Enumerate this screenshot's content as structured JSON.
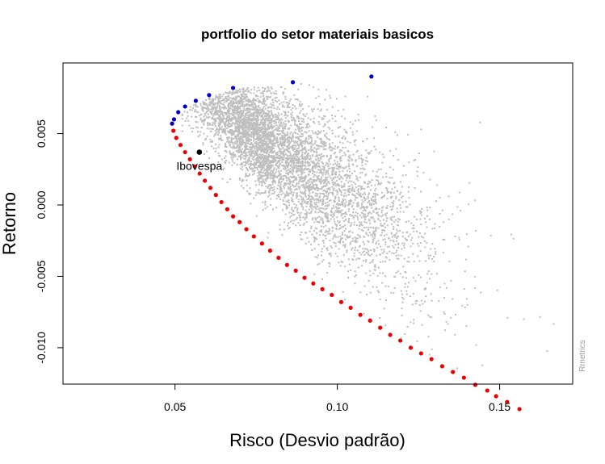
{
  "chart_data": {
    "type": "scatter",
    "title": "portfolio do setor materiais basicos",
    "xlabel": "Risco (Desvio padrão)",
    "ylabel": "Retorno",
    "xlim": [
      0.0155,
      0.1725
    ],
    "ylim": [
      -0.01255,
      0.00995
    ],
    "x_ticks": [
      0.05,
      0.1,
      0.15
    ],
    "x_tick_labels": [
      "0.05",
      "0.10",
      "0.15"
    ],
    "y_ticks": [
      -0.01,
      -0.005,
      0.0,
      0.005
    ],
    "y_tick_labels": [
      "-0.010",
      "-0.005",
      "0.000",
      "0.005"
    ],
    "grid": false,
    "legend": "none",
    "colors": {
      "random_portfolios": "#bebebe",
      "efficient_frontier": "#0000cd",
      "inefficient_frontier": "#ee0000",
      "benchmark": "#000000"
    },
    "series": [
      {
        "role": "efficient_frontier",
        "x": [
          0.0491,
          0.0497,
          0.051,
          0.0531,
          0.0564,
          0.0605,
          0.0679,
          0.0863,
          0.1105
        ],
        "y": [
          0.0057,
          0.006,
          0.0065,
          0.0069,
          0.0073,
          0.0077,
          0.0082,
          0.0086,
          0.009
        ]
      },
      {
        "role": "inefficient_frontier",
        "x": [
          0.0491,
          0.0495,
          0.0504,
          0.0517,
          0.0531,
          0.0546,
          0.0561,
          0.0576,
          0.0592,
          0.0609,
          0.0626,
          0.0643,
          0.0661,
          0.0679,
          0.0699,
          0.072,
          0.0743,
          0.0768,
          0.0793,
          0.0819,
          0.0845,
          0.0872,
          0.0899,
          0.0926,
          0.0954,
          0.0983,
          0.1012,
          0.1041,
          0.1071,
          0.1101,
          0.1132,
          0.1163,
          0.1194,
          0.1226,
          0.1258,
          0.129,
          0.1323,
          0.1356,
          0.139,
          0.1425,
          0.1462,
          0.1489,
          0.1523,
          0.1561
        ],
        "y": [
          0.0057,
          0.0052,
          0.0047,
          0.0042,
          0.0037,
          0.0032,
          0.0027,
          0.0022,
          0.0017,
          0.0012,
          0.0007,
          0.0002,
          -0.0003,
          -0.0008,
          -0.0012,
          -0.0017,
          -0.0022,
          -0.0027,
          -0.0032,
          -0.0037,
          -0.0042,
          -0.0046,
          -0.0051,
          -0.0055,
          -0.0059,
          -0.0063,
          -0.0068,
          -0.0072,
          -0.0077,
          -0.0081,
          -0.0086,
          -0.0091,
          -0.0095,
          -0.01,
          -0.0104,
          -0.0108,
          -0.0113,
          -0.0117,
          -0.0121,
          -0.0126,
          -0.013,
          -0.0134,
          -0.0138,
          -0.0143
        ]
      },
      {
        "role": "benchmark",
        "name": "Ibovespa",
        "x": [
          0.0575
        ],
        "y": [
          0.0037
        ]
      }
    ],
    "cloud": {
      "description_free_params": true,
      "count": 5600,
      "seed": 17
    },
    "watermark": "Rmetrics"
  }
}
